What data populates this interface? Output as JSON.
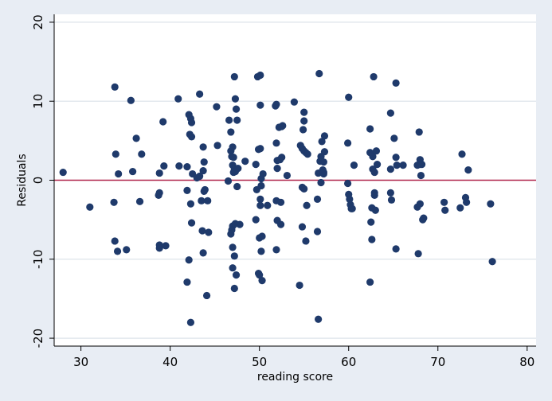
{
  "colors": {
    "background": "#e8edf4",
    "plot_background": "#ffffff",
    "grid": "#e3e8ee",
    "points": "#1f3a6b",
    "reference_line": "#b0234a",
    "axis": "#000000"
  },
  "chart_data": {
    "type": "scatter",
    "title": "",
    "xlabel": "reading score",
    "ylabel": "Residuals",
    "xlim": [
      27,
      81
    ],
    "ylim": [
      -21,
      21
    ],
    "xticks": [
      30,
      40,
      50,
      60,
      70,
      80
    ],
    "yticks": [
      -20,
      -10,
      0,
      10,
      20
    ],
    "grid": "horizontal",
    "legend": "none",
    "reference_line_y": 0,
    "points": [
      {
        "x": 28,
        "y": 1.0
      },
      {
        "x": 31,
        "y": -3.4
      },
      {
        "x": 33.8,
        "y": 11.8
      },
      {
        "x": 33.9,
        "y": 3.3
      },
      {
        "x": 33.7,
        "y": -2.8
      },
      {
        "x": 34.2,
        "y": 0.8
      },
      {
        "x": 33.8,
        "y": -7.7
      },
      {
        "x": 34.1,
        "y": -9.0
      },
      {
        "x": 35.1,
        "y": -8.8
      },
      {
        "x": 35.6,
        "y": 10.1
      },
      {
        "x": 35.8,
        "y": 1.1
      },
      {
        "x": 36.2,
        "y": 5.3
      },
      {
        "x": 36.6,
        "y": -2.7
      },
      {
        "x": 36.8,
        "y": 3.3
      },
      {
        "x": 38.8,
        "y": 0.9
      },
      {
        "x": 38.8,
        "y": -1.6
      },
      {
        "x": 38.7,
        "y": -1.9
      },
      {
        "x": 38.8,
        "y": -8.2
      },
      {
        "x": 38.8,
        "y": -8.6
      },
      {
        "x": 39.2,
        "y": 7.4
      },
      {
        "x": 39.3,
        "y": 1.8
      },
      {
        "x": 39.5,
        "y": -8.3
      },
      {
        "x": 40.9,
        "y": 10.3
      },
      {
        "x": 41.0,
        "y": 1.8
      },
      {
        "x": 41.9,
        "y": 1.7
      },
      {
        "x": 41.9,
        "y": -1.3
      },
      {
        "x": 42.1,
        "y": 8.3
      },
      {
        "x": 42.3,
        "y": 7.8
      },
      {
        "x": 42.4,
        "y": 7.3
      },
      {
        "x": 42.2,
        "y": 5.8
      },
      {
        "x": 42.4,
        "y": 5.5
      },
      {
        "x": 42.5,
        "y": 0.8
      },
      {
        "x": 42.3,
        "y": -3.0
      },
      {
        "x": 42.4,
        "y": -5.4
      },
      {
        "x": 42.1,
        "y": -10.1
      },
      {
        "x": 41.9,
        "y": -12.9
      },
      {
        "x": 42.3,
        "y": -18.0
      },
      {
        "x": 43.0,
        "y": 0.3
      },
      {
        "x": 43.3,
        "y": 10.9
      },
      {
        "x": 43.3,
        "y": 0.5
      },
      {
        "x": 43.7,
        "y": 4.2
      },
      {
        "x": 43.8,
        "y": 2.3
      },
      {
        "x": 43.7,
        "y": 1.2
      },
      {
        "x": 43.9,
        "y": -1.2
      },
      {
        "x": 43.8,
        "y": -1.4
      },
      {
        "x": 43.5,
        "y": -2.6
      },
      {
        "x": 43.6,
        "y": -6.4
      },
      {
        "x": 43.7,
        "y": -9.2
      },
      {
        "x": 44.1,
        "y": -14.6
      },
      {
        "x": 44.2,
        "y": -2.6
      },
      {
        "x": 44.3,
        "y": -6.6
      },
      {
        "x": 45.2,
        "y": 9.3
      },
      {
        "x": 45.3,
        "y": 4.4
      },
      {
        "x": 46.5,
        "y": -0.1
      },
      {
        "x": 46.6,
        "y": 7.6
      },
      {
        "x": 46.8,
        "y": 6.1
      },
      {
        "x": 46.8,
        "y": 3.7
      },
      {
        "x": 46.9,
        "y": 3.0
      },
      {
        "x": 47.1,
        "y": 2.9
      },
      {
        "x": 47.0,
        "y": 4.2
      },
      {
        "x": 47.0,
        "y": 1.9
      },
      {
        "x": 47.2,
        "y": 1.4
      },
      {
        "x": 47.1,
        "y": 1.0
      },
      {
        "x": 47.3,
        "y": 1.1
      },
      {
        "x": 47.0,
        "y": -5.8
      },
      {
        "x": 46.9,
        "y": -6.3
      },
      {
        "x": 46.8,
        "y": -6.8
      },
      {
        "x": 47.0,
        "y": -8.5
      },
      {
        "x": 47.2,
        "y": -9.6
      },
      {
        "x": 47.0,
        "y": -11.1
      },
      {
        "x": 47.4,
        "y": -12.0
      },
      {
        "x": 47.2,
        "y": -13.7
      },
      {
        "x": 47.2,
        "y": 13.1
      },
      {
        "x": 47.3,
        "y": 10.3
      },
      {
        "x": 47.4,
        "y": 9.0
      },
      {
        "x": 47.5,
        "y": 7.6
      },
      {
        "x": 47.6,
        "y": 1.5
      },
      {
        "x": 47.5,
        "y": -0.8
      },
      {
        "x": 47.3,
        "y": -5.5
      },
      {
        "x": 47.8,
        "y": -5.6
      },
      {
        "x": 48.4,
        "y": 2.4
      },
      {
        "x": 49.6,
        "y": 2.0
      },
      {
        "x": 49.7,
        "y": -1.2
      },
      {
        "x": 49.6,
        "y": -5.0
      },
      {
        "x": 49.9,
        "y": -11.8
      },
      {
        "x": 49.8,
        "y": 13.1
      },
      {
        "x": 50.1,
        "y": 13.3
      },
      {
        "x": 50.1,
        "y": 9.5
      },
      {
        "x": 49.9,
        "y": 3.9
      },
      {
        "x": 50.1,
        "y": 4.0
      },
      {
        "x": 50.2,
        "y": 0.2
      },
      {
        "x": 50.2,
        "y": -0.7
      },
      {
        "x": 50.1,
        "y": -2.4
      },
      {
        "x": 50.1,
        "y": -3.2
      },
      {
        "x": 50.0,
        "y": -7.3
      },
      {
        "x": 50.3,
        "y": -7.1
      },
      {
        "x": 50.2,
        "y": -9.0
      },
      {
        "x": 50.0,
        "y": -12.0
      },
      {
        "x": 50.3,
        "y": -12.7
      },
      {
        "x": 50.4,
        "y": 0.8
      },
      {
        "x": 50.9,
        "y": -3.2
      },
      {
        "x": 51.8,
        "y": 9.4
      },
      {
        "x": 51.9,
        "y": 9.6
      },
      {
        "x": 51.9,
        "y": 4.7
      },
      {
        "x": 52.0,
        "y": 2.5
      },
      {
        "x": 52.0,
        "y": 1.5
      },
      {
        "x": 51.9,
        "y": -2.6
      },
      {
        "x": 52.0,
        "y": -5.1
      },
      {
        "x": 51.9,
        "y": -8.8
      },
      {
        "x": 52.2,
        "y": 6.7
      },
      {
        "x": 52.3,
        "y": 2.6
      },
      {
        "x": 52.5,
        "y": 6.8
      },
      {
        "x": 52.6,
        "y": 6.9
      },
      {
        "x": 52.5,
        "y": 2.9
      },
      {
        "x": 52.4,
        "y": -2.8
      },
      {
        "x": 52.4,
        "y": -5.6
      },
      {
        "x": 53.1,
        "y": 0.6
      },
      {
        "x": 53.9,
        "y": 9.9
      },
      {
        "x": 54.5,
        "y": -13.3
      },
      {
        "x": 54.6,
        "y": 4.4
      },
      {
        "x": 54.8,
        "y": 4.0
      },
      {
        "x": 55.0,
        "y": 8.6
      },
      {
        "x": 55.0,
        "y": 7.5
      },
      {
        "x": 54.9,
        "y": 6.4
      },
      {
        "x": 55.0,
        "y": 3.7
      },
      {
        "x": 55.2,
        "y": 3.5
      },
      {
        "x": 54.8,
        "y": -0.9
      },
      {
        "x": 55.0,
        "y": -1.1
      },
      {
        "x": 54.8,
        "y": -5.9
      },
      {
        "x": 55.2,
        "y": -7.7
      },
      {
        "x": 55.3,
        "y": -3.2
      },
      {
        "x": 55.4,
        "y": 3.3
      },
      {
        "x": 56.7,
        "y": 13.5
      },
      {
        "x": 56.5,
        "y": -2.4
      },
      {
        "x": 56.5,
        "y": -6.5
      },
      {
        "x": 56.6,
        "y": 0.9
      },
      {
        "x": 56.6,
        "y": -17.6
      },
      {
        "x": 56.8,
        "y": 2.4
      },
      {
        "x": 56.9,
        "y": -0.3
      },
      {
        "x": 57.0,
        "y": 4.9
      },
      {
        "x": 56.9,
        "y": 3.0
      },
      {
        "x": 57.1,
        "y": 1.3
      },
      {
        "x": 57.2,
        "y": 0.8
      },
      {
        "x": 57.2,
        "y": 1.0
      },
      {
        "x": 57.2,
        "y": 2.3
      },
      {
        "x": 57.3,
        "y": 5.6
      },
      {
        "x": 57.3,
        "y": 3.6
      },
      {
        "x": 59.9,
        "y": 4.7
      },
      {
        "x": 59.9,
        "y": -0.4
      },
      {
        "x": 60.0,
        "y": 10.5
      },
      {
        "x": 60.0,
        "y": -1.8
      },
      {
        "x": 60.1,
        "y": -2.4
      },
      {
        "x": 60.2,
        "y": -3.1
      },
      {
        "x": 60.3,
        "y": -3.6
      },
      {
        "x": 60.4,
        "y": -3.6
      },
      {
        "x": 60.6,
        "y": 1.9
      },
      {
        "x": 62.4,
        "y": 6.5
      },
      {
        "x": 62.4,
        "y": 3.5
      },
      {
        "x": 62.6,
        "y": -3.5
      },
      {
        "x": 62.5,
        "y": -5.3
      },
      {
        "x": 62.6,
        "y": -7.5
      },
      {
        "x": 62.4,
        "y": -12.9
      },
      {
        "x": 62.7,
        "y": 3.0
      },
      {
        "x": 62.7,
        "y": 1.4
      },
      {
        "x": 62.8,
        "y": 13.1
      },
      {
        "x": 62.9,
        "y": 1.0
      },
      {
        "x": 62.9,
        "y": -1.6
      },
      {
        "x": 62.9,
        "y": -1.9
      },
      {
        "x": 63.1,
        "y": 3.7
      },
      {
        "x": 63.2,
        "y": 2.0
      },
      {
        "x": 63.0,
        "y": -3.8
      },
      {
        "x": 64.7,
        "y": 8.5
      },
      {
        "x": 64.7,
        "y": 1.4
      },
      {
        "x": 64.7,
        "y": -1.6
      },
      {
        "x": 64.8,
        "y": -2.5
      },
      {
        "x": 65.1,
        "y": 5.3
      },
      {
        "x": 65.3,
        "y": 12.3
      },
      {
        "x": 65.3,
        "y": 2.9
      },
      {
        "x": 65.4,
        "y": 1.9
      },
      {
        "x": 65.3,
        "y": -8.7
      },
      {
        "x": 66.1,
        "y": 1.9
      },
      {
        "x": 67.7,
        "y": 1.9
      },
      {
        "x": 67.7,
        "y": -3.4
      },
      {
        "x": 67.8,
        "y": -9.3
      },
      {
        "x": 67.9,
        "y": 6.1
      },
      {
        "x": 68.0,
        "y": 2.6
      },
      {
        "x": 68.0,
        "y": 2.0
      },
      {
        "x": 68.1,
        "y": 0.6
      },
      {
        "x": 68.0,
        "y": -3.0
      },
      {
        "x": 68.2,
        "y": 2.0
      },
      {
        "x": 68.3,
        "y": -5.0
      },
      {
        "x": 68.4,
        "y": -4.8
      },
      {
        "x": 70.7,
        "y": -2.8
      },
      {
        "x": 70.8,
        "y": -3.8
      },
      {
        "x": 72.5,
        "y": -3.5
      },
      {
        "x": 72.7,
        "y": 3.3
      },
      {
        "x": 73.1,
        "y": -2.2
      },
      {
        "x": 73.2,
        "y": -2.8
      },
      {
        "x": 73.4,
        "y": 1.3
      },
      {
        "x": 75.9,
        "y": -3.0
      },
      {
        "x": 76.1,
        "y": -10.3
      }
    ]
  }
}
